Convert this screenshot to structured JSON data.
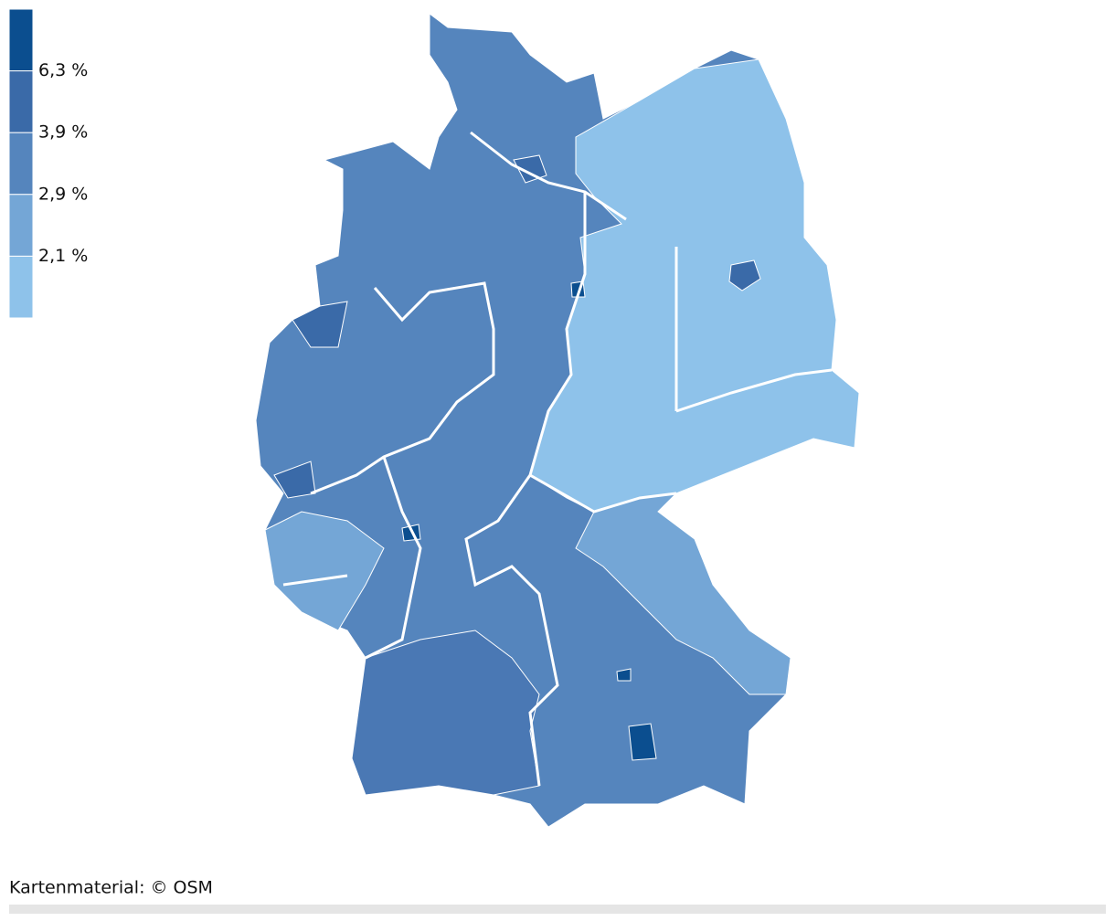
{
  "legend": {
    "colors": [
      "#0b4e8f",
      "#3a6aa8",
      "#5585bd",
      "#74a6d6",
      "#8ec2ea"
    ],
    "labels": [
      "6,3 %",
      "3,9 %",
      "2,9 %",
      "2,1 %"
    ]
  },
  "footer": {
    "credit": "Kartenmaterial: © OSM"
  }
}
